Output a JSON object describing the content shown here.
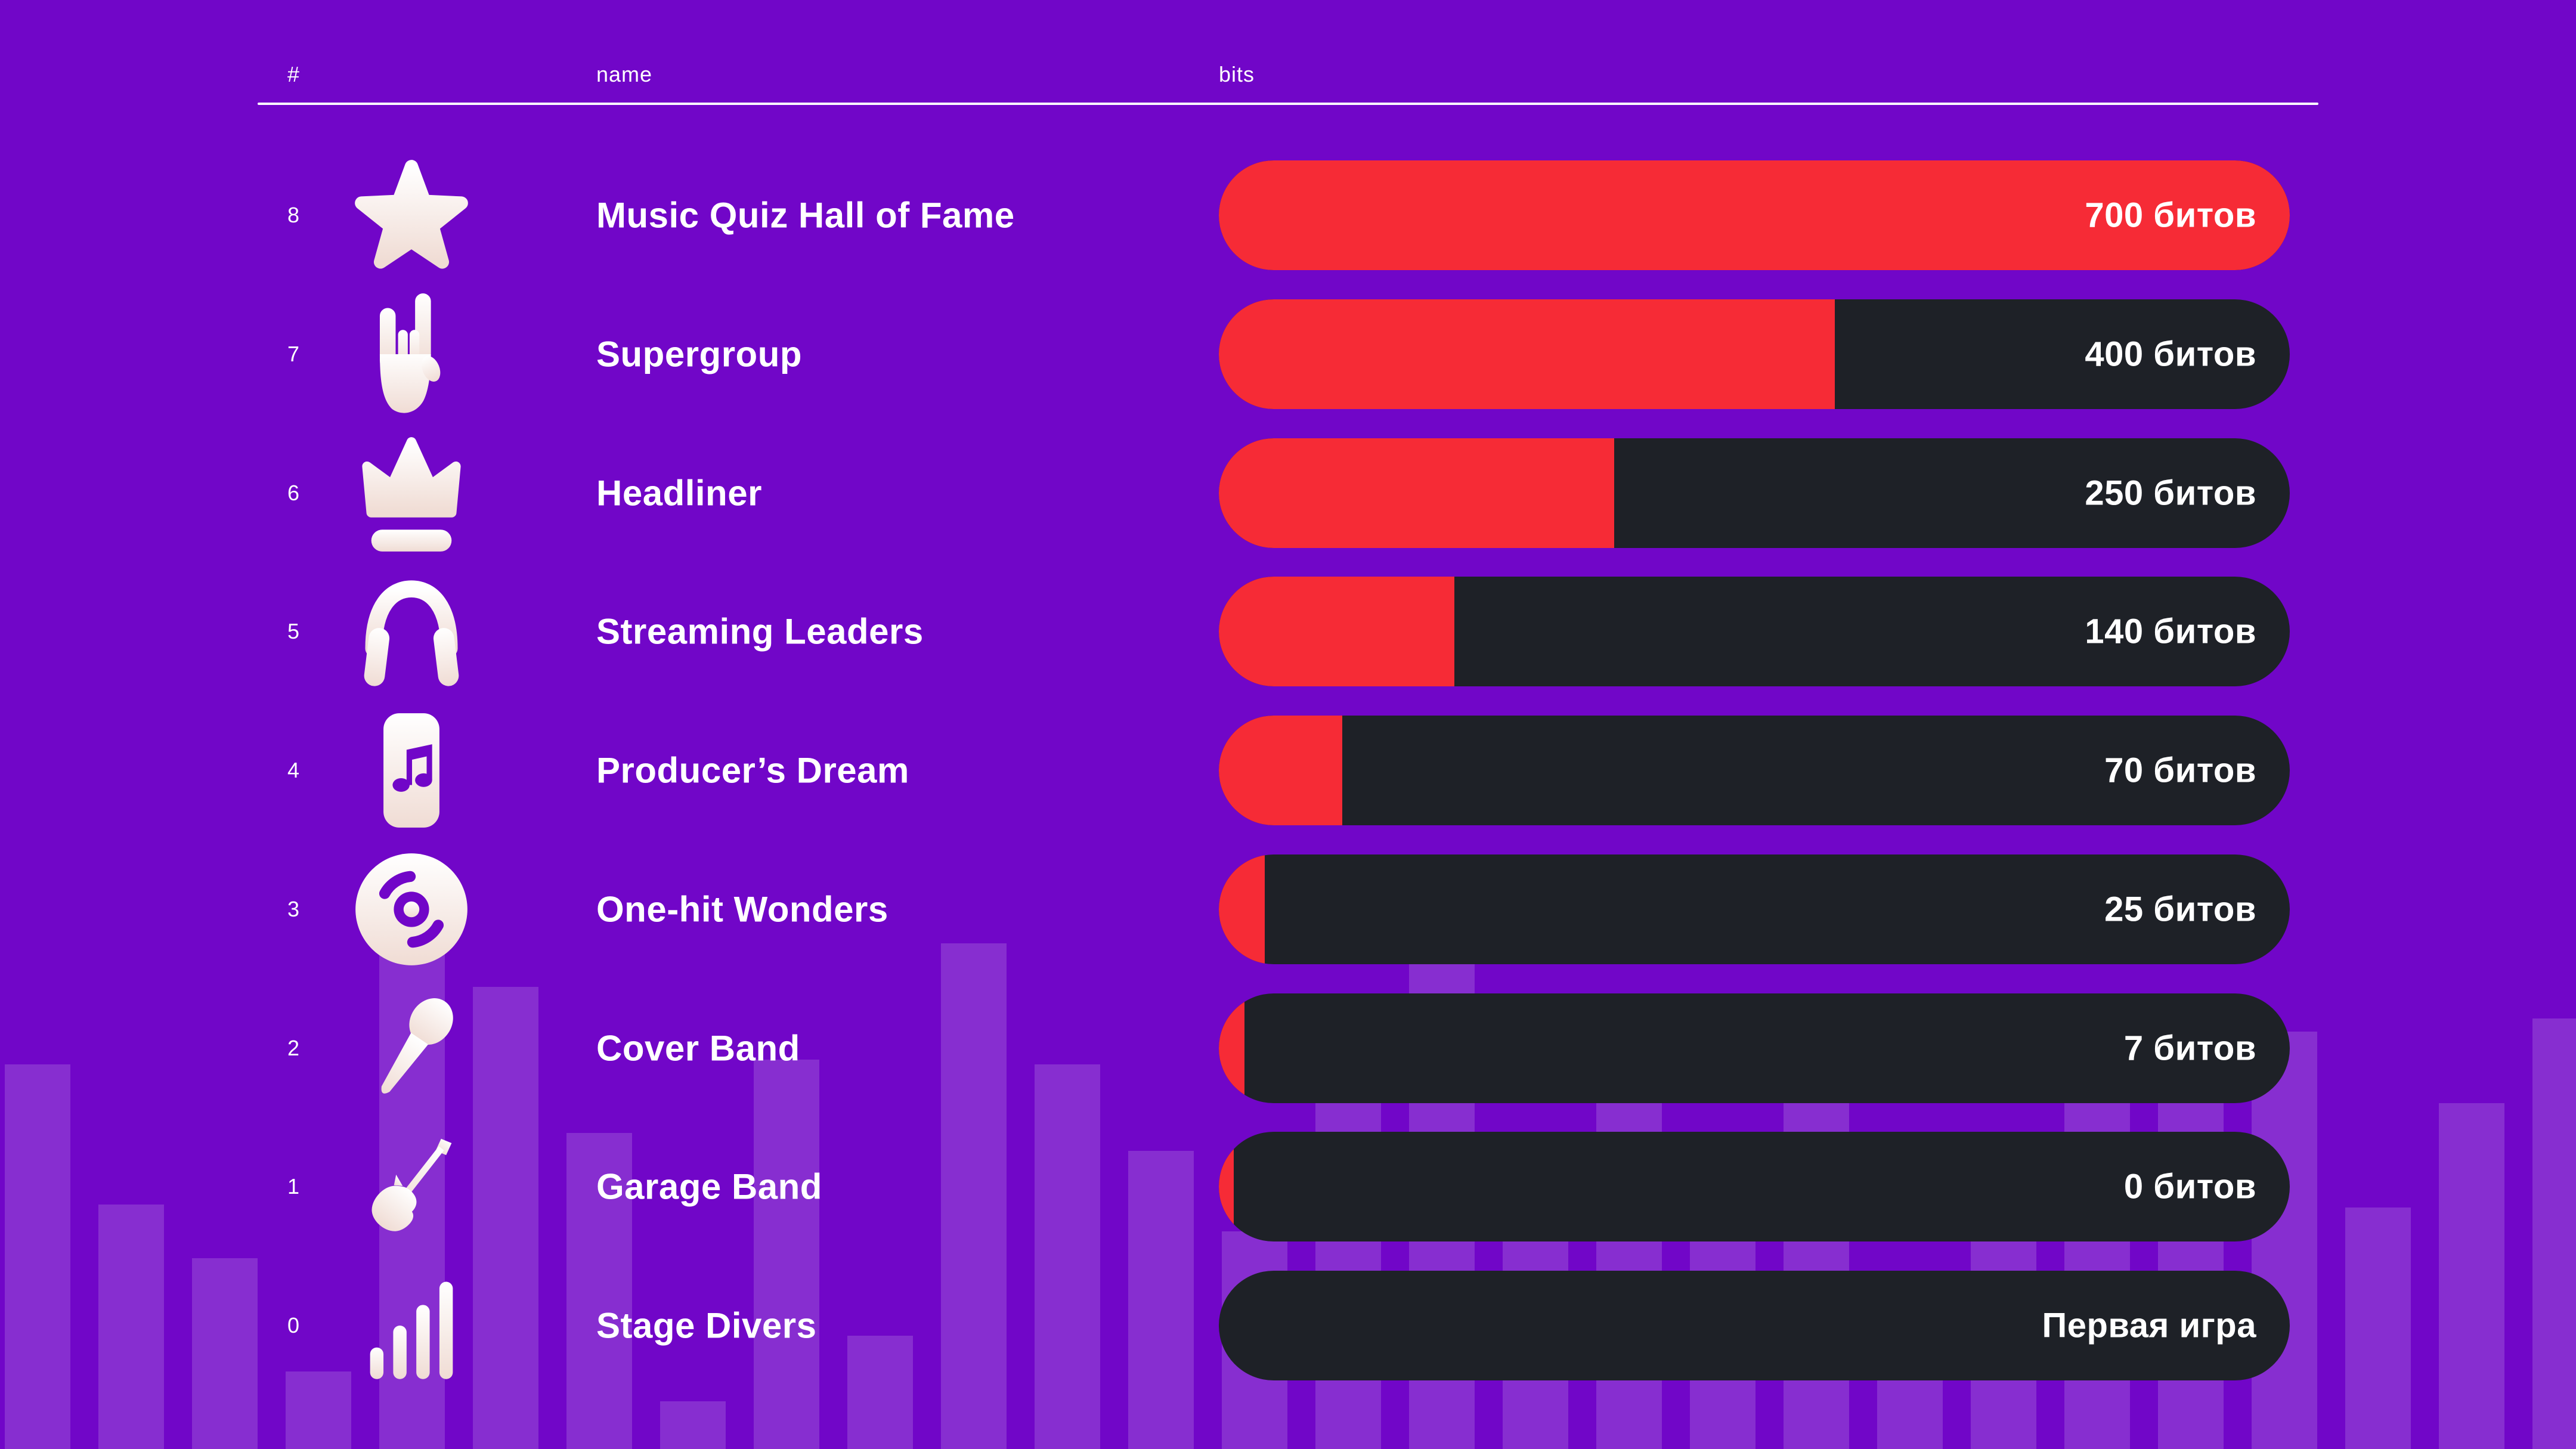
{
  "header": {
    "rank": "#",
    "name": "name",
    "bits": "bits"
  },
  "colors": {
    "background_purple": "#7106C8",
    "bar_dark": "#1E2127",
    "accent_red": "#F62B36",
    "text_white": "#FFFFFF",
    "eq_bar_overlay": "rgba(255,255,255,0.16)",
    "icon_gradient_top": "#FFFFFF",
    "icon_gradient_bottom": "#F0DCD4"
  },
  "levels": {
    "rows": [
      {
        "rank": "8",
        "icon": "star",
        "name": "Music Quiz Hall of Fame",
        "value": "700 битов",
        "bits": 700,
        "fill_pct": 100
      },
      {
        "rank": "7",
        "icon": "rock-hand",
        "name": "Supergroup",
        "value": "400 битов",
        "bits": 400,
        "fill_pct": 57.5
      },
      {
        "rank": "6",
        "icon": "crown",
        "name": "Headliner",
        "value": "250 битов",
        "bits": 250,
        "fill_pct": 36.9
      },
      {
        "rank": "5",
        "icon": "headphones",
        "name": "Streaming Leaders",
        "value": "140 битов",
        "bits": 140,
        "fill_pct": 22
      },
      {
        "rank": "4",
        "icon": "music-file",
        "name": "Producer’s Dream",
        "value": "70 битов",
        "bits": 70,
        "fill_pct": 11.5
      },
      {
        "rank": "3",
        "icon": "vinyl",
        "name": "One-hit Wonders",
        "value": "25 битов",
        "bits": 25,
        "fill_pct": 4.3
      },
      {
        "rank": "2",
        "icon": "microphone",
        "name": "Cover Band",
        "value": "7 битов",
        "bits": 7,
        "fill_pct": 2.4
      },
      {
        "rank": "1",
        "icon": "guitar",
        "name": "Garage Band",
        "value": "0 битов",
        "bits": 0,
        "fill_pct": 1.4
      },
      {
        "rank": "0",
        "icon": "signal-bars",
        "name": "Stage Divers",
        "value": "Первая игра",
        "bits": null,
        "fill_pct": 0
      }
    ]
  },
  "background": {
    "eq_bar_heights": [
      645,
      410,
      320,
      130,
      860,
      775,
      530,
      80,
      653,
      190,
      848,
      645,
      500,
      365,
      722,
      832,
      500,
      722,
      365,
      640,
      170,
      405,
      722,
      722,
      700,
      405,
      580,
      722
    ]
  }
}
